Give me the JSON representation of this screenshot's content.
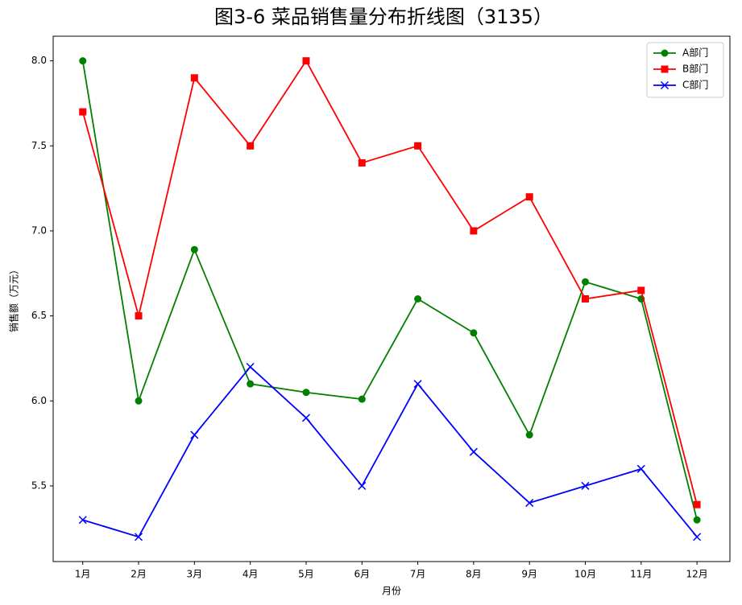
{
  "chart_data": {
    "type": "line",
    "title": "图3-6 菜品销售量分布折线图（3135）",
    "xlabel": "月份",
    "ylabel": "销售额（万元）",
    "categories": [
      "1月",
      "2月",
      "3月",
      "4月",
      "5月",
      "6月",
      "7月",
      "8月",
      "9月",
      "10月",
      "11月",
      "12月"
    ],
    "series": [
      {
        "name": "A部门",
        "color": "#008000",
        "marker": "o",
        "values": [
          8.0,
          6.0,
          6.89,
          6.1,
          6.05,
          6.01,
          6.6,
          6.4,
          5.8,
          6.7,
          6.6,
          5.3
        ]
      },
      {
        "name": "B部门",
        "color": "#ff0000",
        "marker": "s",
        "values": [
          7.7,
          6.5,
          7.9,
          7.5,
          8.0,
          7.4,
          7.5,
          7.0,
          7.2,
          6.6,
          6.65,
          5.39
        ]
      },
      {
        "name": "C部门",
        "color": "#0000ff",
        "marker": "x",
        "values": [
          5.3,
          5.2,
          5.8,
          6.2,
          5.9,
          5.5,
          6.1,
          5.7,
          5.4,
          5.5,
          5.6,
          5.2
        ]
      }
    ],
    "ylim": [
      5.055,
      8.145
    ],
    "yticks": [
      5.5,
      {
        "value": 6,
        "label": "6.0"
      },
      6.5,
      {
        "value": 7,
        "label": "7.0"
      },
      7.5,
      {
        "value": 8,
        "label": "8.0"
      }
    ],
    "legend": "upper right"
  }
}
